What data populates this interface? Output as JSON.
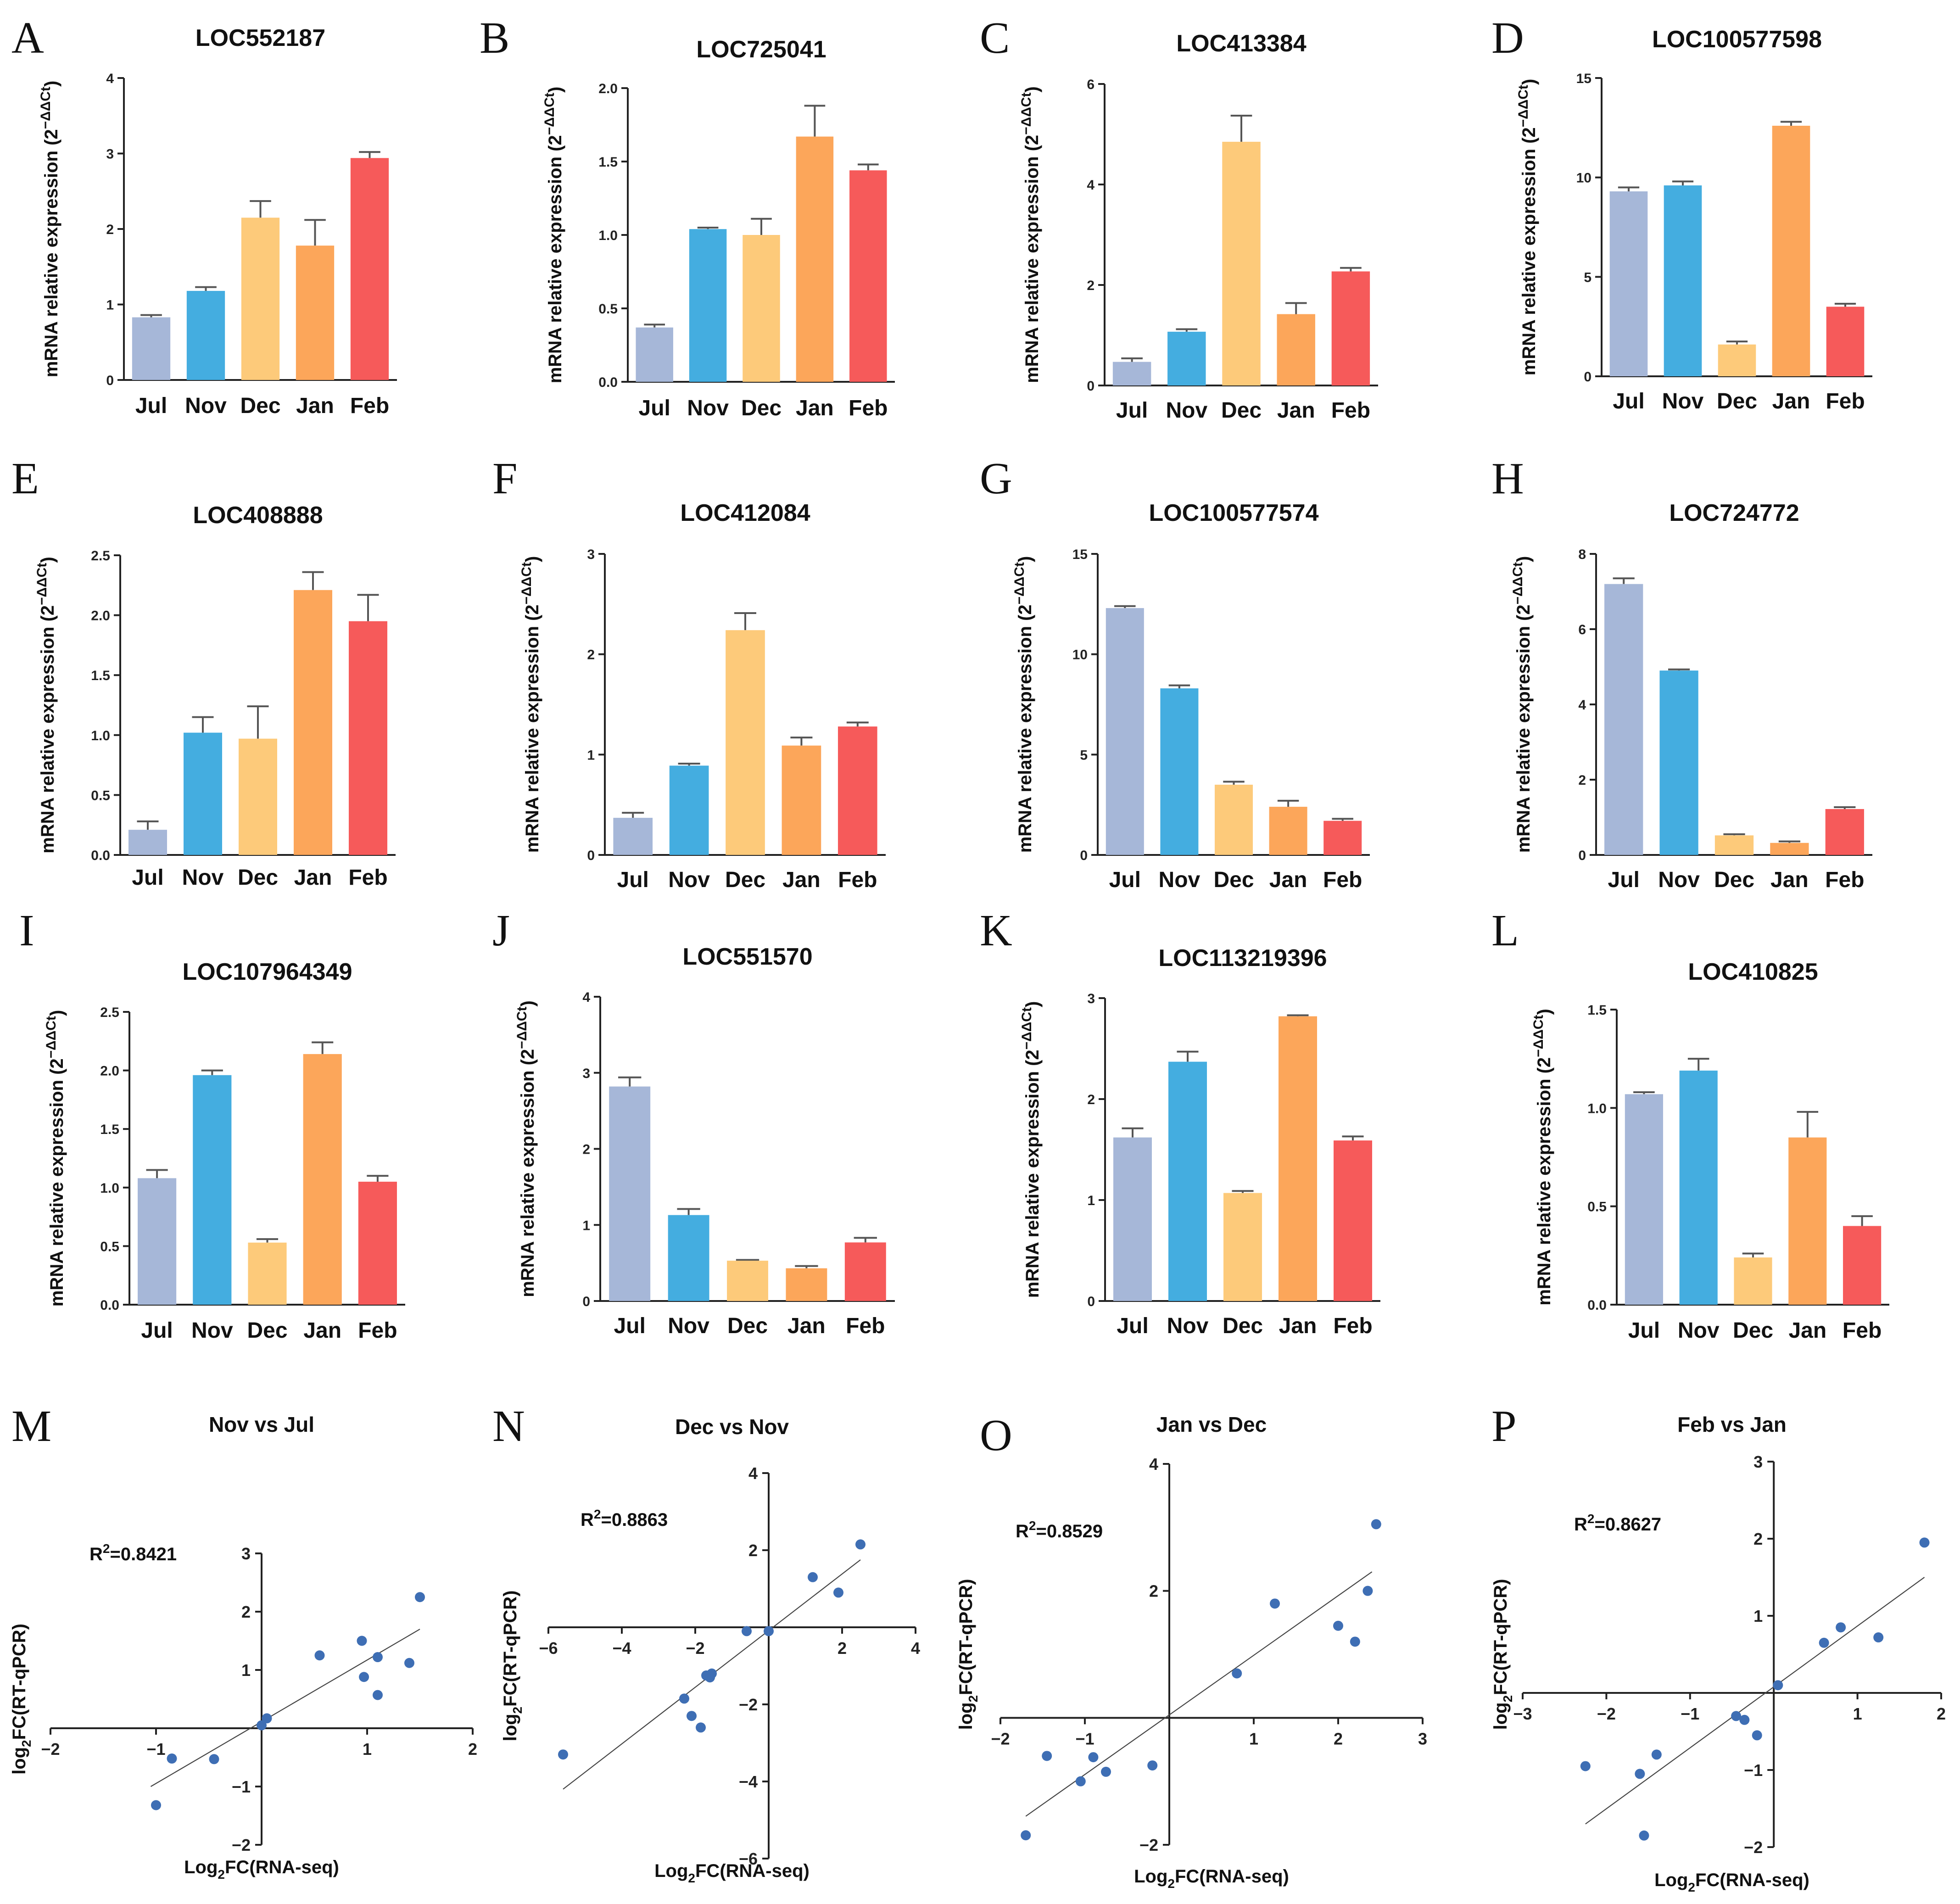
{
  "colors": {
    "Jul": "#a6b7d8",
    "Nov": "#44ade0",
    "Dec": "#fdca7a",
    "Jan": "#fca65a",
    "Feb": "#f65a5a",
    "points": "#3e6eb4"
  },
  "chart_data": [
    {
      "letter": "A",
      "type": "bar",
      "title": "LOC552187",
      "ylabel": "mRNA relative expression (2",
      "ylabel_sup": "−ΔΔCt",
      "ylabel_close": ")",
      "categories": [
        "Jul",
        "Nov",
        "Dec",
        "Jan",
        "Feb"
      ],
      "values": [
        0.83,
        1.18,
        2.15,
        1.78,
        2.94
      ],
      "errors": [
        0.03,
        0.05,
        0.22,
        0.34,
        0.08
      ],
      "ylim": [
        0,
        4
      ],
      "yticks": [
        0,
        1,
        2,
        3,
        4
      ],
      "ytick_labels": [
        "0",
        "1",
        "2",
        "3",
        "4"
      ]
    },
    {
      "letter": "B",
      "type": "bar",
      "title": "LOC725041",
      "ylabel": "mRNA relative expression (2",
      "ylabel_sup": "−ΔΔCt",
      "ylabel_close": ")",
      "categories": [
        "Jul",
        "Nov",
        "Dec",
        "Jan",
        "Feb"
      ],
      "values": [
        0.37,
        1.04,
        1.0,
        1.67,
        1.44
      ],
      "errors": [
        0.02,
        0.01,
        0.11,
        0.21,
        0.04
      ],
      "ylim": [
        0,
        2
      ],
      "yticks": [
        0,
        0.5,
        1,
        1.5,
        2
      ],
      "ytick_labels": [
        "0.0",
        "0.5",
        "1.0",
        "1.5",
        "2.0"
      ]
    },
    {
      "letter": "C",
      "type": "bar",
      "title": "LOC413384",
      "ylabel": "mRNA relative expression (2",
      "ylabel_sup": "−ΔΔCt",
      "ylabel_close": ")",
      "categories": [
        "Jul",
        "Nov",
        "Dec",
        "Jan",
        "Feb"
      ],
      "values": [
        0.47,
        1.07,
        4.85,
        1.42,
        2.27
      ],
      "errors": [
        0.07,
        0.05,
        0.52,
        0.22,
        0.07
      ],
      "ylim": [
        0,
        6
      ],
      "yticks": [
        0,
        2,
        4,
        6
      ],
      "ytick_labels": [
        "0",
        "2",
        "4",
        "6"
      ]
    },
    {
      "letter": "D",
      "type": "bar",
      "title": "LOC100577598",
      "ylabel": "mRNA relative expression (2",
      "ylabel_sup": "−ΔΔCt",
      "ylabel_close": ")",
      "categories": [
        "Jul",
        "Nov",
        "Dec",
        "Jan",
        "Feb"
      ],
      "values": [
        9.3,
        9.6,
        1.6,
        12.6,
        3.5
      ],
      "errors": [
        0.2,
        0.2,
        0.15,
        0.2,
        0.15
      ],
      "ylim": [
        0,
        15
      ],
      "yticks": [
        0,
        5,
        10,
        15
      ],
      "ytick_labels": [
        "0",
        "5",
        "10",
        "15"
      ]
    },
    {
      "letter": "E",
      "type": "bar",
      "title": "LOC408888",
      "ylabel": "mRNA relative expression (2",
      "ylabel_sup": "−ΔΔCt",
      "ylabel_close": ")",
      "categories": [
        "Jul",
        "Nov",
        "Dec",
        "Jan",
        "Feb"
      ],
      "values": [
        0.21,
        1.02,
        0.97,
        2.21,
        1.95
      ],
      "errors": [
        0.07,
        0.13,
        0.27,
        0.15,
        0.22
      ],
      "ylim": [
        0,
        2.5
      ],
      "yticks": [
        0,
        0.5,
        1,
        1.5,
        2,
        2.5
      ],
      "ytick_labels": [
        "0.0",
        "0.5",
        "1.0",
        "1.5",
        "2.0",
        "2.5"
      ]
    },
    {
      "letter": "F",
      "type": "bar",
      "title": "LOC412084",
      "ylabel": "mRNA relative expression (2",
      "ylabel_sup": "−ΔΔCt",
      "ylabel_close": ")",
      "categories": [
        "Jul",
        "Nov",
        "Dec",
        "Jan",
        "Feb"
      ],
      "values": [
        0.37,
        0.89,
        2.24,
        1.09,
        1.28
      ],
      "errors": [
        0.05,
        0.02,
        0.17,
        0.08,
        0.04
      ],
      "ylim": [
        0,
        3
      ],
      "yticks": [
        0,
        1,
        2,
        3
      ],
      "ytick_labels": [
        "0",
        "1",
        "2",
        "3"
      ]
    },
    {
      "letter": "G",
      "type": "bar",
      "title": "LOC100577574",
      "ylabel": "mRNA relative expression (2",
      "ylabel_sup": "−ΔΔCt",
      "ylabel_close": ")",
      "categories": [
        "Jul",
        "Nov",
        "Dec",
        "Jan",
        "Feb"
      ],
      "values": [
        12.3,
        8.3,
        3.5,
        2.4,
        1.7
      ],
      "errors": [
        0.1,
        0.15,
        0.15,
        0.3,
        0.1
      ],
      "ylim": [
        0,
        15
      ],
      "yticks": [
        0,
        5,
        10,
        15
      ],
      "ytick_labels": [
        "0",
        "5",
        "10",
        "15"
      ]
    },
    {
      "letter": "H",
      "type": "bar",
      "title": "LOC724772",
      "ylabel": "mRNA relative expression (2",
      "ylabel_sup": "−ΔΔCt",
      "ylabel_close": ")",
      "categories": [
        "Jul",
        "Nov",
        "Dec",
        "Jan",
        "Feb"
      ],
      "values": [
        7.2,
        4.9,
        0.52,
        0.32,
        1.22
      ],
      "errors": [
        0.15,
        0.03,
        0.03,
        0.04,
        0.05
      ],
      "ylim": [
        0,
        8
      ],
      "yticks": [
        0,
        2,
        4,
        6,
        8
      ],
      "ytick_labels": [
        "0",
        "2",
        "4",
        "6",
        "8"
      ]
    },
    {
      "letter": "I",
      "type": "bar",
      "title": "LOC107964349",
      "ylabel": "mRNA relative expression (2",
      "ylabel_sup": "−ΔΔCt",
      "ylabel_close": ")",
      "categories": [
        "Jul",
        "Nov",
        "Dec",
        "Jan",
        "Feb"
      ],
      "values": [
        1.08,
        1.96,
        0.53,
        2.14,
        1.05
      ],
      "errors": [
        0.07,
        0.04,
        0.03,
        0.1,
        0.05
      ],
      "ylim": [
        0,
        2.5
      ],
      "yticks": [
        0,
        0.5,
        1,
        1.5,
        2,
        2.5
      ],
      "ytick_labels": [
        "0.0",
        "0.5",
        "1.0",
        "1.5",
        "2.0",
        "2.5"
      ]
    },
    {
      "letter": "J",
      "type": "bar",
      "title": "LOC551570",
      "ylabel": "mRNA relative expression (2",
      "ylabel_sup": "−ΔΔCt",
      "ylabel_close": ")",
      "categories": [
        "Jul",
        "Nov",
        "Dec",
        "Jan",
        "Feb"
      ],
      "values": [
        2.82,
        1.13,
        0.53,
        0.43,
        0.77
      ],
      "errors": [
        0.12,
        0.08,
        0.01,
        0.03,
        0.06
      ],
      "ylim": [
        0,
        4
      ],
      "yticks": [
        0,
        1,
        2,
        3,
        4
      ],
      "ytick_labels": [
        "0",
        "1",
        "2",
        "3",
        "4"
      ]
    },
    {
      "letter": "K",
      "type": "bar",
      "title": "LOC113219396",
      "ylabel": "mRNA relative expression (2",
      "ylabel_sup": "−ΔΔCt",
      "ylabel_close": ")",
      "categories": [
        "Jul",
        "Nov",
        "Dec",
        "Jan",
        "Feb"
      ],
      "values": [
        1.62,
        2.37,
        1.07,
        2.82,
        1.59
      ],
      "errors": [
        0.09,
        0.1,
        0.02,
        0.01,
        0.04
      ],
      "ylim": [
        0,
        3
      ],
      "yticks": [
        0,
        1,
        2,
        3
      ],
      "ytick_labels": [
        "0",
        "1",
        "2",
        "3"
      ]
    },
    {
      "letter": "L",
      "type": "bar",
      "title": "LOC410825",
      "ylabel": "mRNA relative expression (2",
      "ylabel_sup": "−ΔΔCt",
      "ylabel_close": ")",
      "categories": [
        "Jul",
        "Nov",
        "Dec",
        "Jan",
        "Feb"
      ],
      "values": [
        1.07,
        1.19,
        0.24,
        0.85,
        0.4
      ],
      "errors": [
        0.01,
        0.06,
        0.02,
        0.13,
        0.05
      ],
      "ylim": [
        0,
        1.5
      ],
      "yticks": [
        0,
        0.5,
        1,
        1.5
      ],
      "ytick_labels": [
        "0.0",
        "0.5",
        "1.0",
        "1.5"
      ]
    },
    {
      "letter": "M",
      "type": "scatter",
      "title": "Nov vs  Jul",
      "r2": "R",
      "r2_sup": "2",
      "r2_value": "=0.8421",
      "xlabel": "Log",
      "xlabel_sub": "2",
      "xlabel_rest": "FC(RNA-seq)",
      "ylabel": "log",
      "ylabel_sub": "2",
      "ylabel_rest": "FC(RT-qPCR)",
      "xlim": [
        -2,
        2
      ],
      "ylim": [
        -2,
        3
      ],
      "xticks": [
        -2,
        -1,
        1,
        2
      ],
      "xtick_labels": [
        "−2",
        "−1",
        "1",
        "2"
      ],
      "yticks": [
        -2,
        -1,
        1,
        2,
        3
      ],
      "ytick_labels": [
        "−2",
        "−1",
        "1",
        "2",
        "3"
      ],
      "points": [
        [
          -1.0,
          -1.32
        ],
        [
          -0.85,
          -0.52
        ],
        [
          -0.45,
          -0.53
        ],
        [
          0.0,
          0.05
        ],
        [
          0.05,
          0.17
        ],
        [
          0.55,
          1.25
        ],
        [
          0.95,
          1.5
        ],
        [
          0.97,
          0.88
        ],
        [
          1.1,
          1.22
        ],
        [
          1.1,
          0.57
        ],
        [
          1.4,
          1.12
        ],
        [
          1.5,
          2.25
        ]
      ],
      "fit": [
        [
          -1.05,
          -1.0
        ],
        [
          1.5,
          1.7
        ]
      ]
    },
    {
      "letter": "N",
      "type": "scatter",
      "title": "Dec vs Nov",
      "r2": "R",
      "r2_sup": "2",
      "r2_value": "=0.8863",
      "xlabel": "Log",
      "xlabel_sub": "2",
      "xlabel_rest": "FC(RNA-seq)",
      "ylabel": "log",
      "ylabel_sub": "2",
      "ylabel_rest": "FC(RT-qPCR)",
      "xlim": [
        -6,
        4
      ],
      "ylim": [
        -6,
        4
      ],
      "xticks": [
        -6,
        -4,
        -2,
        2,
        4
      ],
      "xtick_labels": [
        "−6",
        "−4",
        "−2",
        "2",
        "4"
      ],
      "yticks": [
        -6,
        -4,
        -2,
        2,
        4
      ],
      "ytick_labels": [
        "−6",
        "−4",
        "−2",
        "2",
        "4"
      ],
      "points": [
        [
          -5.6,
          -3.3
        ],
        [
          -2.3,
          -1.85
        ],
        [
          -2.1,
          -2.3
        ],
        [
          -1.85,
          -2.6
        ],
        [
          -1.7,
          -1.25
        ],
        [
          -1.6,
          -1.3
        ],
        [
          -1.55,
          -1.2
        ],
        [
          -0.6,
          -0.1
        ],
        [
          0.0,
          -0.1
        ],
        [
          1.2,
          1.3
        ],
        [
          1.9,
          0.9
        ],
        [
          2.5,
          2.15
        ]
      ],
      "fit": [
        [
          -5.6,
          -4.2
        ],
        [
          2.5,
          1.75
        ]
      ]
    },
    {
      "letter": "O",
      "type": "scatter",
      "title": "Jan vs Dec",
      "r2": "R",
      "r2_sup": "2",
      "r2_value": "=0.8529",
      "xlabel": "Log",
      "xlabel_sub": "2",
      "xlabel_rest": "FC(RNA-seq)",
      "ylabel": "log",
      "ylabel_sub": "2",
      "ylabel_rest": "FC(RT-qPCR)",
      "xlim": [
        -2,
        3
      ],
      "ylim": [
        -2,
        4
      ],
      "xticks": [
        -2,
        -1,
        1,
        2,
        3
      ],
      "xtick_labels": [
        "−2",
        "−1",
        "1",
        "2",
        "3"
      ],
      "yticks": [
        -2,
        2,
        4
      ],
      "ytick_labels": [
        "−2",
        "2",
        "4"
      ],
      "points": [
        [
          -1.7,
          -1.85
        ],
        [
          -1.45,
          -0.6
        ],
        [
          -1.05,
          -1.0
        ],
        [
          -0.9,
          -0.62
        ],
        [
          -0.75,
          -0.85
        ],
        [
          -0.2,
          -0.75
        ],
        [
          0.8,
          0.7
        ],
        [
          1.25,
          1.8
        ],
        [
          2.0,
          1.45
        ],
        [
          2.2,
          1.2
        ],
        [
          2.35,
          2.0
        ],
        [
          2.45,
          3.05
        ]
      ],
      "fit": [
        [
          -1.7,
          -1.55
        ],
        [
          2.4,
          2.3
        ]
      ]
    },
    {
      "letter": "P",
      "type": "scatter",
      "title": "Feb vs Jan",
      "r2": "R",
      "r2_sup": "2",
      "r2_value": "=0.8627",
      "xlabel": "Log",
      "xlabel_sub": "2",
      "xlabel_rest": "FC(RNA-seq)",
      "ylabel": "log",
      "ylabel_sub": "2",
      "ylabel_rest": "FC(RT-qPCR)",
      "xlim": [
        -3,
        2
      ],
      "ylim": [
        -2,
        3
      ],
      "xticks": [
        -3,
        -2,
        -1,
        1,
        2
      ],
      "xtick_labels": [
        "−3",
        "−2",
        "−1",
        "1",
        "2"
      ],
      "yticks": [
        -2,
        -1,
        1,
        2,
        3
      ],
      "ytick_labels": [
        "−2",
        "−1",
        "1",
        "2",
        "3"
      ],
      "points": [
        [
          -2.25,
          -0.95
        ],
        [
          -1.6,
          -1.05
        ],
        [
          -1.55,
          -1.85
        ],
        [
          -1.4,
          -0.8
        ],
        [
          -0.45,
          -0.3
        ],
        [
          -0.35,
          -0.35
        ],
        [
          -0.2,
          -0.55
        ],
        [
          0.05,
          0.1
        ],
        [
          0.6,
          0.65
        ],
        [
          0.8,
          0.85
        ],
        [
          1.25,
          0.72
        ],
        [
          1.8,
          1.95
        ]
      ],
      "fit": [
        [
          -2.25,
          -1.7
        ],
        [
          1.8,
          1.5
        ]
      ]
    }
  ]
}
